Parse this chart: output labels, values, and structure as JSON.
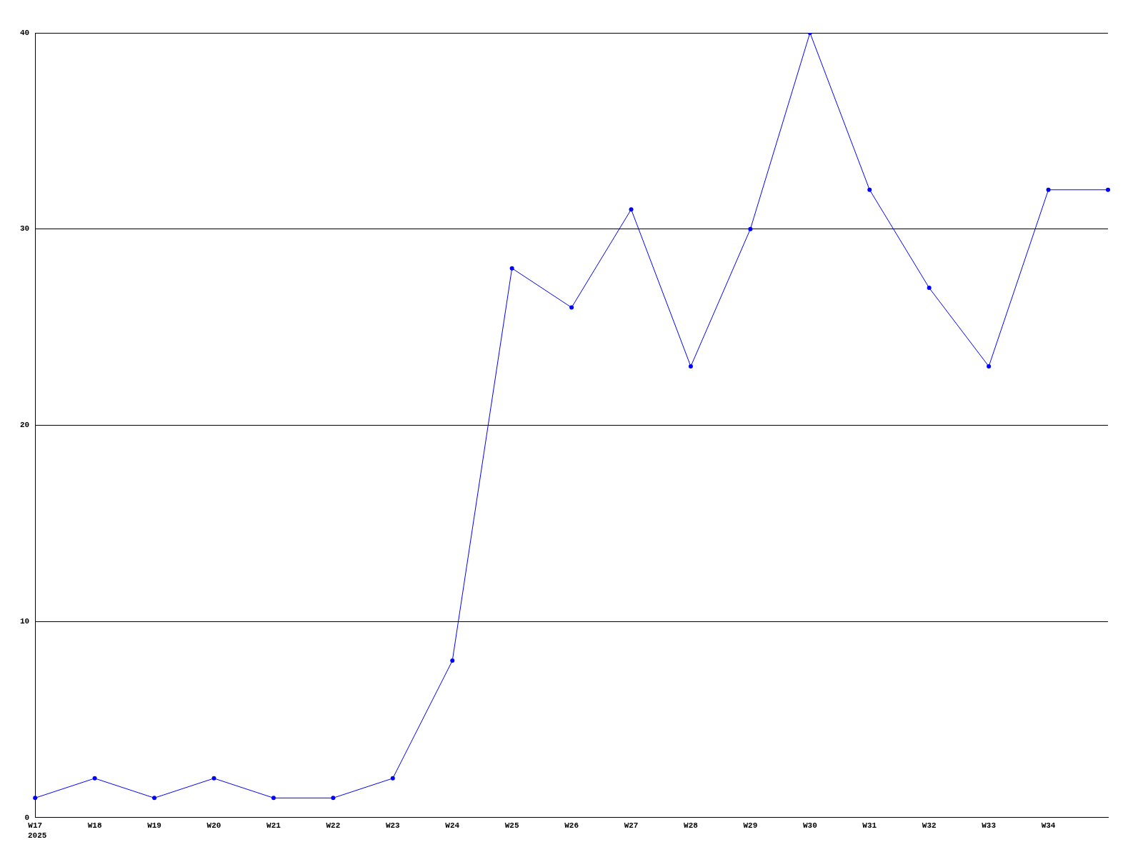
{
  "chart_data": {
    "type": "line",
    "categories": [
      "W17",
      "W18",
      "W19",
      "W20",
      "W21",
      "W22",
      "W23",
      "W24",
      "W25",
      "W26",
      "W27",
      "W28",
      "W29",
      "W30",
      "W31",
      "W32",
      "W33",
      "W34",
      null
    ],
    "series": [
      {
        "color": "#0000ff",
        "values": [
          1,
          2,
          1,
          2,
          1,
          1,
          2,
          8,
          28,
          26,
          31,
          23,
          30,
          40,
          32,
          27,
          23,
          32,
          32
        ]
      }
    ],
    "ylim": [
      0,
      40
    ],
    "yticks": [
      0,
      10,
      20,
      30,
      40
    ],
    "grid": "y",
    "legend": false,
    "marker": "circle",
    "line_style": "solid",
    "annotations": [
      "2025"
    ]
  }
}
